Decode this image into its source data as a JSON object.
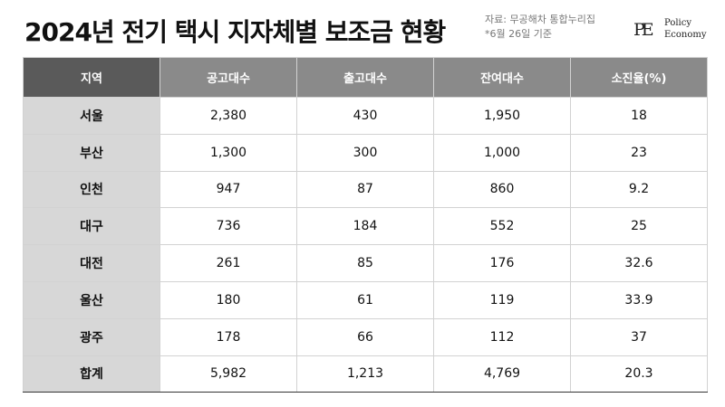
{
  "header": {
    "title": "2024년 전기 택시 지자체별 보조금 현황",
    "source_line1": "자료: 무공해차 통합누리집",
    "source_line2": "*6월 26일 기준",
    "logo_mark": "PE",
    "logo_line1": "Policy",
    "logo_line2": "Economy"
  },
  "table": {
    "columns": [
      "지역",
      "공고대수",
      "출고대수",
      "잔여대수",
      "소진율(%)"
    ],
    "rows": [
      [
        "서울",
        "2,380",
        "430",
        "1,950",
        "18"
      ],
      [
        "부산",
        "1,300",
        "300",
        "1,000",
        "23"
      ],
      [
        "인천",
        "947",
        "87",
        "860",
        "9.2"
      ],
      [
        "대구",
        "736",
        "184",
        "552",
        "25"
      ],
      [
        "대전",
        "261",
        "85",
        "176",
        "32.6"
      ],
      [
        "울산",
        "180",
        "61",
        "119",
        "33.9"
      ],
      [
        "광주",
        "178",
        "66",
        "112",
        "37"
      ],
      [
        "합계",
        "5,982",
        "1,213",
        "4,769",
        "20.3"
      ]
    ]
  }
}
